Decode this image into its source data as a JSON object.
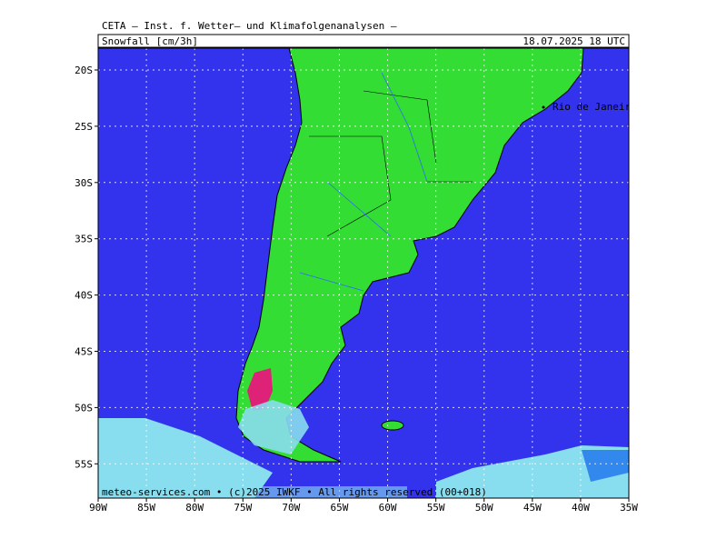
{
  "header": {
    "title": "CETA – Inst. f. Wetter– und Klimafolgenanalysen –",
    "parameter": "Snowfall [cm/3h]",
    "valid_time": "18.07.2025 18 UTC"
  },
  "map": {
    "lat_labels": [
      "20S",
      "25S",
      "30S",
      "35S",
      "40S",
      "45S",
      "50S",
      "55S"
    ],
    "lon_labels": [
      "90W",
      "85W",
      "80W",
      "75W",
      "70W",
      "65W",
      "60W",
      "55W",
      "50W",
      "45W",
      "40W",
      "35W"
    ],
    "city": "Rio de Janeiro",
    "footer": "meteo-services.com • (c)2025 IWKF • All rights reserved (00+018)"
  }
}
